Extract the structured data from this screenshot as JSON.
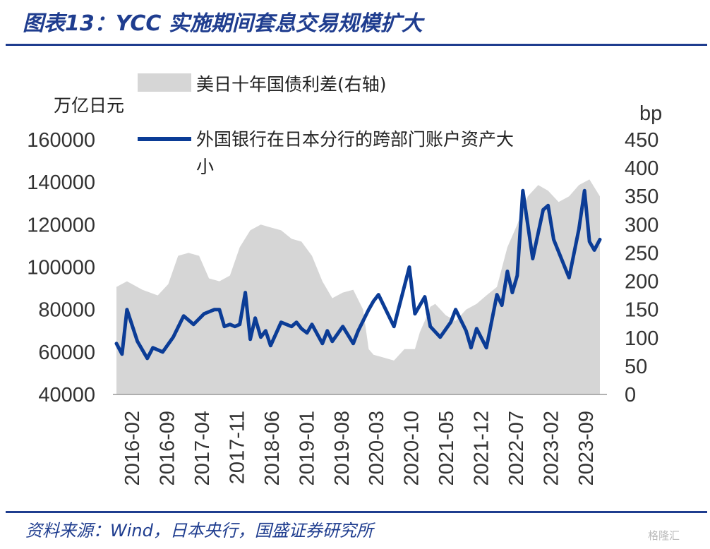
{
  "header": {
    "title": "图表13：YCC 实施期间套息交易规模扩大"
  },
  "footer": {
    "source": "资料来源：Wind，日本央行，国盛证券研究所",
    "watermark": "格隆汇"
  },
  "chart_data": {
    "type": "line",
    "left_unit": "万亿日元",
    "right_unit": "bp",
    "left_axis": {
      "min": 40000,
      "max": 160000,
      "ticks": [
        "40000",
        "60000",
        "80000",
        "100000",
        "120000",
        "140000",
        "160000"
      ]
    },
    "right_axis": {
      "min": 0,
      "max": 450,
      "ticks": [
        "0",
        "50",
        "100",
        "150",
        "200",
        "250",
        "300",
        "350",
        "400",
        "450"
      ]
    },
    "x_tick_labels": [
      "2016-02",
      "2016-09",
      "2017-04",
      "2017-11",
      "2018-06",
      "2019-01",
      "2019-08",
      "2020-03",
      "2020-10",
      "2021-05",
      "2021-12",
      "2022-07",
      "2023-02",
      "2023-09"
    ],
    "legend": {
      "area_label": "美日十年国债利差(右轴)",
      "line_label_1": "外国银行在日本分行的跨部门账户资产大",
      "line_label_2": "小"
    },
    "colors": {
      "area": "#d6d6d6",
      "line": "#0b3c96"
    },
    "series": [
      {
        "name": "外国银行在日本分行的跨部门账户资产大小",
        "axis": "left",
        "x": [
          2016.08,
          2016.17,
          2016.25,
          2016.42,
          2016.58,
          2016.67,
          2016.83,
          2017.0,
          2017.17,
          2017.33,
          2017.5,
          2017.67,
          2017.75,
          2017.83,
          2017.92,
          2018.0,
          2018.08,
          2018.17,
          2018.25,
          2018.33,
          2018.42,
          2018.5,
          2018.58,
          2018.75,
          2018.92,
          2019.0,
          2019.08,
          2019.17,
          2019.25,
          2019.42,
          2019.5,
          2019.58,
          2019.75,
          2019.92,
          2020.0,
          2020.17,
          2020.25,
          2020.33,
          2020.58,
          2020.83,
          2020.92,
          2021.08,
          2021.17,
          2021.33,
          2021.5,
          2021.58,
          2021.75,
          2021.83,
          2021.92,
          2022.08,
          2022.25,
          2022.33,
          2022.42,
          2022.5,
          2022.58,
          2022.67,
          2022.83,
          2023.0,
          2023.08,
          2023.17,
          2023.42,
          2023.58,
          2023.67,
          2023.75,
          2023.83,
          2023.92
        ],
        "values": [
          64000,
          59000,
          80000,
          65000,
          57000,
          62000,
          60000,
          67000,
          77000,
          73000,
          78000,
          80000,
          80000,
          72000,
          73000,
          72000,
          73000,
          88000,
          66000,
          76000,
          67000,
          70000,
          63000,
          74000,
          72000,
          74000,
          71000,
          69000,
          73000,
          64000,
          70000,
          65000,
          72000,
          64000,
          70000,
          80000,
          84000,
          87000,
          72000,
          100000,
          78000,
          86000,
          72000,
          67000,
          74000,
          80000,
          70000,
          62000,
          71000,
          62000,
          87000,
          82000,
          98000,
          88000,
          96000,
          136000,
          104000,
          127000,
          129000,
          113000,
          95000,
          118000,
          136000,
          112000,
          108000,
          113000
        ]
      },
      {
        "name": "美日十年国债利差(右轴)",
        "axis": "right",
        "type": "area",
        "x": [
          2016.08,
          2016.25,
          2016.5,
          2016.75,
          2016.92,
          2017.08,
          2017.25,
          2017.42,
          2017.58,
          2017.75,
          2017.92,
          2018.08,
          2018.25,
          2018.42,
          2018.58,
          2018.75,
          2018.92,
          2019.08,
          2019.25,
          2019.42,
          2019.58,
          2019.75,
          2019.92,
          2020.08,
          2020.17,
          2020.25,
          2020.42,
          2020.58,
          2020.75,
          2020.92,
          2021.0,
          2021.08,
          2021.17,
          2021.25,
          2021.42,
          2021.58,
          2021.75,
          2021.92,
          2022.08,
          2022.25,
          2022.42,
          2022.58,
          2022.75,
          2022.92,
          2023.08,
          2023.25,
          2023.42,
          2023.58,
          2023.75,
          2023.92
        ],
        "values": [
          190,
          200,
          185,
          175,
          195,
          245,
          250,
          245,
          205,
          200,
          210,
          260,
          290,
          300,
          295,
          290,
          275,
          270,
          245,
          200,
          170,
          180,
          185,
          150,
          80,
          70,
          65,
          60,
          80,
          80,
          110,
          130,
          155,
          160,
          140,
          130,
          150,
          160,
          175,
          190,
          260,
          300,
          350,
          370,
          360,
          340,
          350,
          370,
          380,
          350
        ]
      }
    ]
  }
}
